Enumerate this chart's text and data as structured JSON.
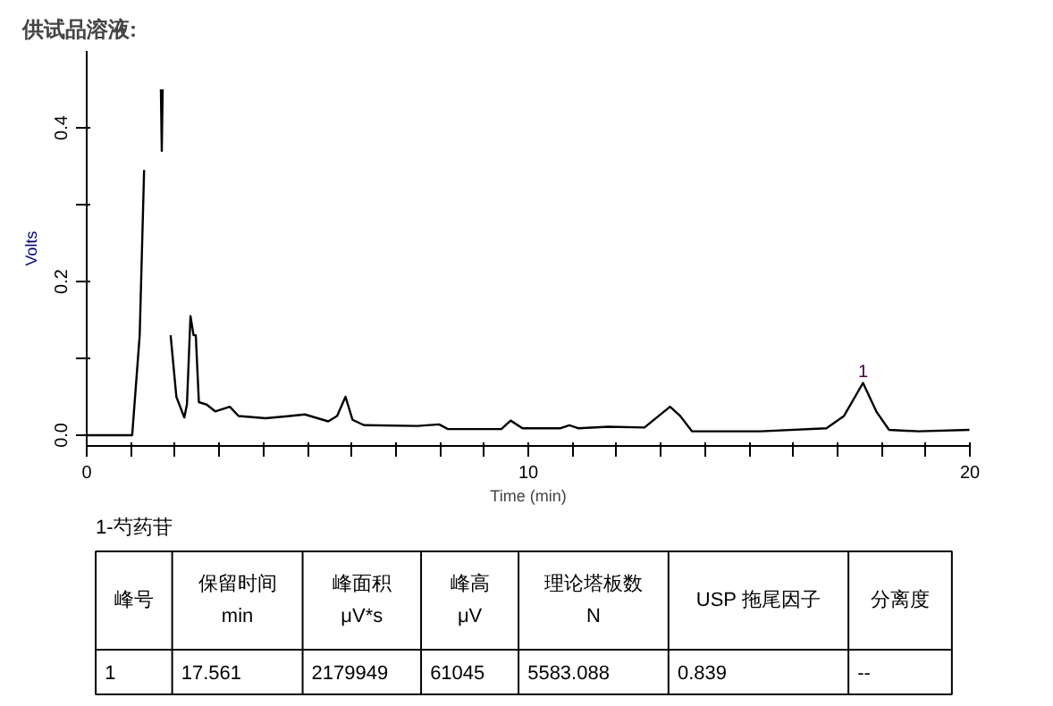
{
  "chart_data": {
    "type": "line",
    "title": "供试品溶液:",
    "xlabel": "Time (min)",
    "ylabel": "Volts",
    "x": [
      0,
      1.03,
      1.2,
      1.3,
      1.33,
      1.65,
      1.68,
      1.7,
      1.72,
      1.75,
      1.81,
      1.9,
      2.03,
      2.21,
      2.27,
      2.35,
      2.42,
      2.47,
      2.54,
      2.71,
      2.91,
      3.24,
      3.44,
      4.05,
      4.6,
      4.94,
      5.47,
      5.67,
      5.86,
      6.02,
      6.28,
      7.49,
      7.98,
      8.18,
      9.39,
      9.6,
      9.87,
      10.73,
      10.93,
      11.13,
      11.82,
      12.63,
      13.21,
      13.44,
      13.71,
      15.26,
      16.75,
      17.15,
      17.58,
      17.89,
      18.17,
      18.83,
      19.99
    ],
    "series": [
      {
        "color": "#000000",
        "values": [
          0,
          0,
          0.13,
          0.345,
          null,
          null,
          0.45,
          0.37,
          0.45,
          null,
          null,
          0.13,
          0.05,
          0.023,
          0.04,
          0.155,
          0.13,
          0.13,
          0.043,
          0.04,
          0.031,
          0.037,
          0.025,
          0.022,
          0.025,
          0.027,
          0.018,
          0.025,
          0.05,
          0.02,
          0.013,
          0.012,
          0.014,
          0.008,
          0.008,
          0.019,
          0.009,
          0.009,
          0.013,
          0.009,
          0.011,
          0.01,
          0.037,
          0.025,
          0.005,
          0.005,
          0.009,
          0.025,
          0.068,
          0.03,
          0.007,
          0.005,
          0.007
        ]
      }
    ],
    "xlim": [
      0,
      20
    ],
    "ylim": [
      -0.014,
      0.5
    ],
    "xticks": [
      0,
      {
        "value": 1,
        "label": null
      },
      {
        "value": 2,
        "label": null
      },
      {
        "value": 3,
        "label": null
      },
      {
        "value": 4,
        "label": null
      },
      {
        "value": 5,
        "label": null
      },
      {
        "value": 6,
        "label": null
      },
      {
        "value": 7,
        "label": null
      },
      {
        "value": 8,
        "label": null
      },
      {
        "value": 9,
        "label": null
      },
      10,
      {
        "value": 11,
        "label": null
      },
      {
        "value": 12,
        "label": null
      },
      {
        "value": 13,
        "label": null
      },
      {
        "value": 14,
        "label": null
      },
      {
        "value": 15,
        "label": null
      },
      {
        "value": 16,
        "label": null
      },
      {
        "value": 17,
        "label": null
      },
      {
        "value": 18,
        "label": null
      },
      {
        "value": 19,
        "label": null
      },
      20
    ],
    "yticks": [
      {
        "value": 0,
        "label": "0.0"
      },
      {
        "value": 0.1,
        "label": null
      },
      {
        "value": 0.2,
        "label": "0.2"
      },
      {
        "value": 0.3,
        "label": null
      },
      {
        "value": 0.4,
        "label": "0.4"
      }
    ],
    "grid": false,
    "annotations": [
      {
        "text": "1",
        "x": 17.58,
        "y": 0.068
      },
      "1-芍药苷",
      "峰号",
      "保留时间\nmin",
      "峰面积\nμV*s",
      "峰高\nμV",
      "理论塔板数\nN",
      "USP 拖尾因子",
      "分离度",
      "1",
      "17.561",
      "2179949",
      "61045",
      "5583.088",
      "0.839",
      "--"
    ]
  }
}
